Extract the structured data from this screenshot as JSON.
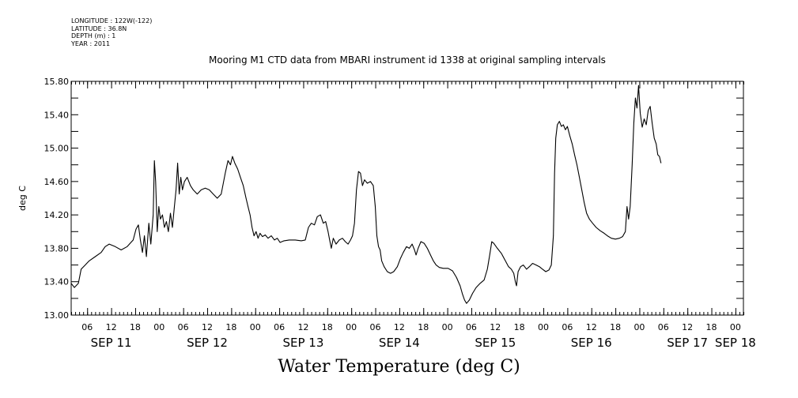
{
  "meta_lines": [
    "LONGITUDE : 122W(-122)",
    "LATITUDE : 36.8N",
    "DEPTH (m) : 1",
    "YEAR : 2011"
  ],
  "chart_data": {
    "type": "line",
    "title": "Mooring M1 CTD data from MBARI instrument id 1338 at original sampling intervals",
    "ylabel": "deg C",
    "footer_label": "Water Temperature (deg C)",
    "ylim": [
      13.0,
      15.8
    ],
    "y_ticks": [
      13.0,
      13.4,
      13.8,
      14.2,
      14.6,
      15.0,
      15.4,
      15.8
    ],
    "y_tick_labels": [
      "13.00",
      "13.40",
      "13.80",
      "14.20",
      "14.60",
      "15.00",
      "15.40",
      "15.80"
    ],
    "xlim_hours": [
      2,
      170
    ],
    "x_hour_ticks": [
      6,
      12,
      18,
      24,
      30,
      36,
      42,
      48,
      54,
      60,
      66,
      72,
      78,
      84,
      90,
      96,
      102,
      108,
      114,
      120,
      126,
      132,
      138,
      144,
      150,
      156,
      162,
      168
    ],
    "x_hour_labels": [
      "06",
      "12",
      "18",
      "00",
      "06",
      "12",
      "18",
      "00",
      "06",
      "12",
      "18",
      "00",
      "06",
      "12",
      "18",
      "00",
      "06",
      "12",
      "18",
      "00",
      "06",
      "12",
      "18",
      "00",
      "06",
      "12",
      "18",
      "00"
    ],
    "day_labels": [
      {
        "hour": 12,
        "text": "SEP 11"
      },
      {
        "hour": 36,
        "text": "SEP 12"
      },
      {
        "hour": 60,
        "text": "SEP 13"
      },
      {
        "hour": 84,
        "text": "SEP 14"
      },
      {
        "hour": 108,
        "text": "SEP 15"
      },
      {
        "hour": 132,
        "text": "SEP 16"
      },
      {
        "hour": 156,
        "text": "SEP 17"
      },
      {
        "hour": 168,
        "text": "SEP 18"
      }
    ],
    "series": [
      {
        "points": [
          [
            2.0,
            13.38
          ],
          [
            2.8,
            13.33
          ],
          [
            3.8,
            13.38
          ],
          [
            4.5,
            13.55
          ],
          [
            5.5,
            13.6
          ],
          [
            6.5,
            13.65
          ],
          [
            8.0,
            13.7
          ],
          [
            9.5,
            13.75
          ],
          [
            10.5,
            13.82
          ],
          [
            11.5,
            13.85
          ],
          [
            13.0,
            13.82
          ],
          [
            14.5,
            13.78
          ],
          [
            16.0,
            13.82
          ],
          [
            17.5,
            13.9
          ],
          [
            18.2,
            14.03
          ],
          [
            18.8,
            14.08
          ],
          [
            19.3,
            13.9
          ],
          [
            19.8,
            13.75
          ],
          [
            20.3,
            13.95
          ],
          [
            20.8,
            13.7
          ],
          [
            21.4,
            14.1
          ],
          [
            21.9,
            13.85
          ],
          [
            22.5,
            14.2
          ],
          [
            22.8,
            14.85
          ],
          [
            23.1,
            14.6
          ],
          [
            23.5,
            14.0
          ],
          [
            23.9,
            14.3
          ],
          [
            24.3,
            14.15
          ],
          [
            24.8,
            14.2
          ],
          [
            25.3,
            14.05
          ],
          [
            25.8,
            14.12
          ],
          [
            26.3,
            14.0
          ],
          [
            26.8,
            14.22
          ],
          [
            27.3,
            14.05
          ],
          [
            27.8,
            14.3
          ],
          [
            28.2,
            14.5
          ],
          [
            28.6,
            14.82
          ],
          [
            29.0,
            14.45
          ],
          [
            29.4,
            14.65
          ],
          [
            29.8,
            14.5
          ],
          [
            30.3,
            14.6
          ],
          [
            31.0,
            14.65
          ],
          [
            31.8,
            14.55
          ],
          [
            32.5,
            14.5
          ],
          [
            33.5,
            14.45
          ],
          [
            34.5,
            14.5
          ],
          [
            35.5,
            14.52
          ],
          [
            36.5,
            14.5
          ],
          [
            37.5,
            14.45
          ],
          [
            38.5,
            14.4
          ],
          [
            39.5,
            14.45
          ],
          [
            40.5,
            14.7
          ],
          [
            41.2,
            14.85
          ],
          [
            41.8,
            14.8
          ],
          [
            42.3,
            14.9
          ],
          [
            42.9,
            14.82
          ],
          [
            43.6,
            14.75
          ],
          [
            44.3,
            14.65
          ],
          [
            45.0,
            14.55
          ],
          [
            45.7,
            14.4
          ],
          [
            46.2,
            14.3
          ],
          [
            46.7,
            14.2
          ],
          [
            47.2,
            14.05
          ],
          [
            47.7,
            13.95
          ],
          [
            48.2,
            14.0
          ],
          [
            48.7,
            13.92
          ],
          [
            49.2,
            13.98
          ],
          [
            49.8,
            13.94
          ],
          [
            50.5,
            13.96
          ],
          [
            51.2,
            13.92
          ],
          [
            52.0,
            13.95
          ],
          [
            52.8,
            13.9
          ],
          [
            53.5,
            13.92
          ],
          [
            54.2,
            13.87
          ],
          [
            55.2,
            13.89
          ],
          [
            56.5,
            13.9
          ],
          [
            58.0,
            13.9
          ],
          [
            59.5,
            13.89
          ],
          [
            60.5,
            13.9
          ],
          [
            61.3,
            14.05
          ],
          [
            62.0,
            14.1
          ],
          [
            62.8,
            14.08
          ],
          [
            63.5,
            14.18
          ],
          [
            64.3,
            14.2
          ],
          [
            65.0,
            14.1
          ],
          [
            65.6,
            14.12
          ],
          [
            66.2,
            14.0
          ],
          [
            66.6,
            13.9
          ],
          [
            67.0,
            13.8
          ],
          [
            67.5,
            13.92
          ],
          [
            68.2,
            13.85
          ],
          [
            69.0,
            13.9
          ],
          [
            69.8,
            13.92
          ],
          [
            70.5,
            13.88
          ],
          [
            71.2,
            13.85
          ],
          [
            71.8,
            13.9
          ],
          [
            72.3,
            13.95
          ],
          [
            72.8,
            14.1
          ],
          [
            73.3,
            14.5
          ],
          [
            73.8,
            14.72
          ],
          [
            74.3,
            14.7
          ],
          [
            74.8,
            14.55
          ],
          [
            75.3,
            14.62
          ],
          [
            76.0,
            14.58
          ],
          [
            76.8,
            14.6
          ],
          [
            77.5,
            14.55
          ],
          [
            78.0,
            14.3
          ],
          [
            78.4,
            13.95
          ],
          [
            78.8,
            13.82
          ],
          [
            79.2,
            13.78
          ],
          [
            79.6,
            13.65
          ],
          [
            80.2,
            13.58
          ],
          [
            81.0,
            13.52
          ],
          [
            81.8,
            13.5
          ],
          [
            82.6,
            13.52
          ],
          [
            83.5,
            13.58
          ],
          [
            84.3,
            13.68
          ],
          [
            85.0,
            13.75
          ],
          [
            85.8,
            13.82
          ],
          [
            86.5,
            13.8
          ],
          [
            87.2,
            13.85
          ],
          [
            87.8,
            13.78
          ],
          [
            88.2,
            13.72
          ],
          [
            88.7,
            13.8
          ],
          [
            89.4,
            13.88
          ],
          [
            90.2,
            13.86
          ],
          [
            91.0,
            13.8
          ],
          [
            91.8,
            13.72
          ],
          [
            92.5,
            13.65
          ],
          [
            93.2,
            13.6
          ],
          [
            94.0,
            13.57
          ],
          [
            95.0,
            13.56
          ],
          [
            96.2,
            13.56
          ],
          [
            97.3,
            13.53
          ],
          [
            98.3,
            13.45
          ],
          [
            99.2,
            13.35
          ],
          [
            99.8,
            13.25
          ],
          [
            100.3,
            13.18
          ],
          [
            100.8,
            13.14
          ],
          [
            101.5,
            13.18
          ],
          [
            102.3,
            13.26
          ],
          [
            103.2,
            13.33
          ],
          [
            104.2,
            13.38
          ],
          [
            105.2,
            13.42
          ],
          [
            106.0,
            13.55
          ],
          [
            106.6,
            13.72
          ],
          [
            107.1,
            13.88
          ],
          [
            107.6,
            13.86
          ],
          [
            108.5,
            13.8
          ],
          [
            109.5,
            13.74
          ],
          [
            110.5,
            13.65
          ],
          [
            111.3,
            13.58
          ],
          [
            112.0,
            13.55
          ],
          [
            112.6,
            13.5
          ],
          [
            113.0,
            13.4
          ],
          [
            113.3,
            13.35
          ],
          [
            113.7,
            13.52
          ],
          [
            114.3,
            13.58
          ],
          [
            115.0,
            13.6
          ],
          [
            115.8,
            13.55
          ],
          [
            116.5,
            13.58
          ],
          [
            117.3,
            13.62
          ],
          [
            118.2,
            13.6
          ],
          [
            119.0,
            13.58
          ],
          [
            119.8,
            13.55
          ],
          [
            120.6,
            13.52
          ],
          [
            121.4,
            13.54
          ],
          [
            122.0,
            13.6
          ],
          [
            122.5,
            13.95
          ],
          [
            122.8,
            14.7
          ],
          [
            123.1,
            15.12
          ],
          [
            123.5,
            15.28
          ],
          [
            124.0,
            15.32
          ],
          [
            124.5,
            15.26
          ],
          [
            125.0,
            15.28
          ],
          [
            125.5,
            15.22
          ],
          [
            126.0,
            15.26
          ],
          [
            126.6,
            15.15
          ],
          [
            127.2,
            15.05
          ],
          [
            127.8,
            14.92
          ],
          [
            128.4,
            14.8
          ],
          [
            129.0,
            14.65
          ],
          [
            129.6,
            14.5
          ],
          [
            130.2,
            14.35
          ],
          [
            130.8,
            14.22
          ],
          [
            131.5,
            14.15
          ],
          [
            132.3,
            14.1
          ],
          [
            133.2,
            14.05
          ],
          [
            134.2,
            14.01
          ],
          [
            135.2,
            13.98
          ],
          [
            136.0,
            13.95
          ],
          [
            137.0,
            13.92
          ],
          [
            138.0,
            13.91
          ],
          [
            139.0,
            13.92
          ],
          [
            139.8,
            13.94
          ],
          [
            140.5,
            14.0
          ],
          [
            140.9,
            14.3
          ],
          [
            141.3,
            14.15
          ],
          [
            141.7,
            14.3
          ],
          [
            142.2,
            14.8
          ],
          [
            142.6,
            15.3
          ],
          [
            143.0,
            15.6
          ],
          [
            143.4,
            15.48
          ],
          [
            143.8,
            15.75
          ],
          [
            144.2,
            15.42
          ],
          [
            144.7,
            15.25
          ],
          [
            145.2,
            15.35
          ],
          [
            145.7,
            15.28
          ],
          [
            146.2,
            15.45
          ],
          [
            146.7,
            15.5
          ],
          [
            147.2,
            15.3
          ],
          [
            147.7,
            15.12
          ],
          [
            148.2,
            15.05
          ],
          [
            148.6,
            14.92
          ],
          [
            149.0,
            14.9
          ],
          [
            149.4,
            14.82
          ]
        ]
      }
    ]
  }
}
